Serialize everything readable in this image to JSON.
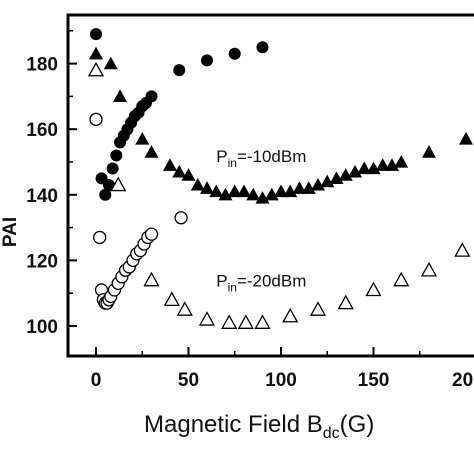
{
  "chart_data": {
    "type": "scatter",
    "xlabel": "Magnetic Field B",
    "xlabel_sub": "dc",
    "xlabel_suffix": "(G)",
    "ylabel_fragment": "PAI",
    "xlim": [
      -10,
      200
    ],
    "ylim": [
      90,
      192
    ],
    "xticks": [
      0,
      50,
      100,
      150
    ],
    "xtick_labels": [
      "0",
      "50",
      "100",
      "150"
    ],
    "xtick_partial_label": "20",
    "yticks": [
      100,
      120,
      140,
      160,
      180
    ],
    "ytick_labels": [
      "100",
      "120",
      "140",
      "160",
      "180"
    ],
    "grid": false,
    "annotations": [
      {
        "text_main": "P",
        "text_sub": "in",
        "text_rest": "=-10dBm",
        "x": 65,
        "y": 150
      },
      {
        "text_main": "P",
        "text_sub": "in",
        "text_rest": "=-20dBm",
        "x": 65,
        "y": 112
      }
    ],
    "series": [
      {
        "marker": "filled-circle",
        "x": [
          0,
          3,
          5,
          7,
          9,
          11,
          13,
          15,
          17,
          19,
          21,
          23,
          25,
          27,
          30,
          45,
          60,
          75,
          90
        ],
        "y": [
          189,
          145,
          140,
          143,
          148,
          152,
          156,
          158,
          160,
          162,
          164,
          165,
          167,
          168,
          170,
          178,
          181,
          183,
          185
        ]
      },
      {
        "marker": "filled-triangle",
        "x": [
          0,
          8,
          13,
          25,
          30,
          40,
          45,
          50,
          55,
          60,
          65,
          70,
          75,
          80,
          85,
          90,
          95,
          100,
          105,
          110,
          115,
          120,
          125,
          130,
          135,
          140,
          145,
          150,
          155,
          160,
          165,
          180,
          200
        ],
        "y": [
          183,
          180,
          170,
          157,
          153,
          149,
          147,
          146,
          143,
          142,
          141,
          140,
          141,
          141,
          140,
          139,
          140,
          141,
          141,
          142,
          142,
          143,
          144,
          145,
          146,
          147,
          148,
          148,
          149,
          149,
          150,
          153,
          157
        ]
      },
      {
        "marker": "open-circle",
        "x": [
          0,
          2,
          3,
          4,
          5,
          6,
          7,
          8,
          10,
          12,
          14,
          16,
          18,
          20,
          22,
          24,
          26,
          28,
          30,
          46
        ],
        "y": [
          163,
          127,
          111,
          108,
          107,
          107,
          108,
          109,
          111,
          113,
          115,
          117,
          118,
          120,
          122,
          123,
          125,
          127,
          128,
          133
        ]
      },
      {
        "marker": "open-triangle",
        "x": [
          0,
          12,
          30,
          41,
          48,
          60,
          72,
          81,
          90,
          105,
          120,
          135,
          150,
          165,
          180,
          198
        ],
        "y": [
          178,
          143,
          114,
          108,
          105,
          102,
          101,
          101,
          101,
          103,
          105,
          107,
          111,
          114,
          117,
          123
        ]
      }
    ]
  }
}
